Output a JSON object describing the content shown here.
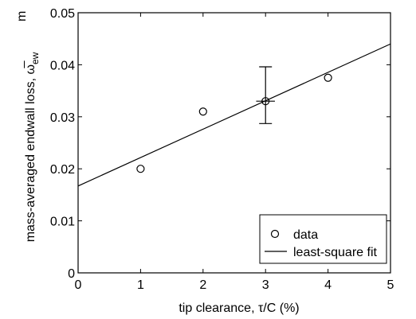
{
  "chart_data": {
    "type": "scatter",
    "xlabel": "tip clearance, τ/C (%)",
    "ylabel": "mass-averaged endwall loss, ω̅",
    "ylabel_sup": "m",
    "ylabel_sub": "ew",
    "xlim": [
      0,
      5
    ],
    "ylim": [
      0,
      0.05
    ],
    "x_ticks": [
      "0",
      "1",
      "2",
      "3",
      "4",
      "5"
    ],
    "y_ticks": [
      "0",
      "0.01",
      "0.02",
      "0.03",
      "0.04",
      "0.05"
    ],
    "grid": false,
    "legend_position": "bottom-right",
    "series": [
      {
        "name": "data",
        "marker": "open-circle",
        "points": [
          {
            "x": 1,
            "y": 0.02
          },
          {
            "x": 2,
            "y": 0.031
          },
          {
            "x": 3,
            "y": 0.033
          },
          {
            "x": 4,
            "y": 0.0375
          }
        ],
        "error_bars": [
          {
            "x": 3,
            "y": 0.033,
            "low": 0.0287,
            "high": 0.0396,
            "x_low": 2.85,
            "x_high": 3.15
          }
        ]
      },
      {
        "name": "least-square fit",
        "line": "solid",
        "points": [
          {
            "x": 0,
            "y": 0.0167
          },
          {
            "x": 5,
            "y": 0.044
          }
        ]
      }
    ]
  }
}
